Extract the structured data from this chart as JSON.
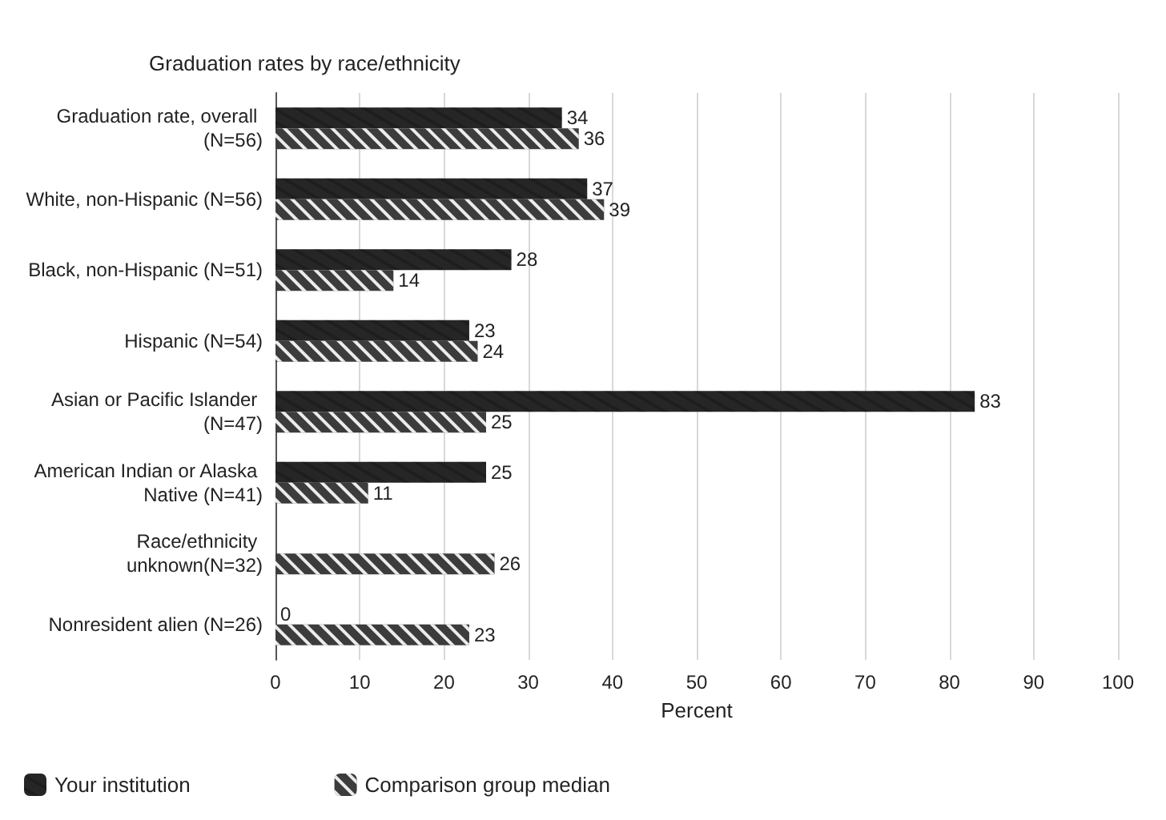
{
  "chart_data": {
    "type": "bar",
    "orientation": "horizontal",
    "title": "Graduation rates by race/ethnicity",
    "xlabel": "Percent",
    "categories": [
      "Graduation rate, overall (N=56)",
      "White, non-Hispanic (N=56)",
      "Black, non-Hispanic (N=51)",
      "Hispanic (N=54)",
      "Asian or Pacific Islander (N=47)",
      "American Indian or Alaska Native (N=41)",
      "Race/ethnicity unknown(N=32)",
      "Nonresident alien (N=26)"
    ],
    "series": [
      {
        "name": "Your institution",
        "color": "#262626",
        "values": [
          34,
          37,
          28,
          23,
          83,
          25,
          null,
          0
        ]
      },
      {
        "name": "Comparison group median",
        "color": "#3c3c3c",
        "values": [
          36,
          39,
          14,
          24,
          25,
          11,
          26,
          23
        ]
      }
    ],
    "xlim": [
      0,
      100
    ],
    "xticks": [
      0,
      10,
      20,
      30,
      40,
      50,
      60,
      70,
      80,
      90,
      100
    ],
    "grid": "x",
    "legend": "bottom left",
    "data_labels": true
  }
}
